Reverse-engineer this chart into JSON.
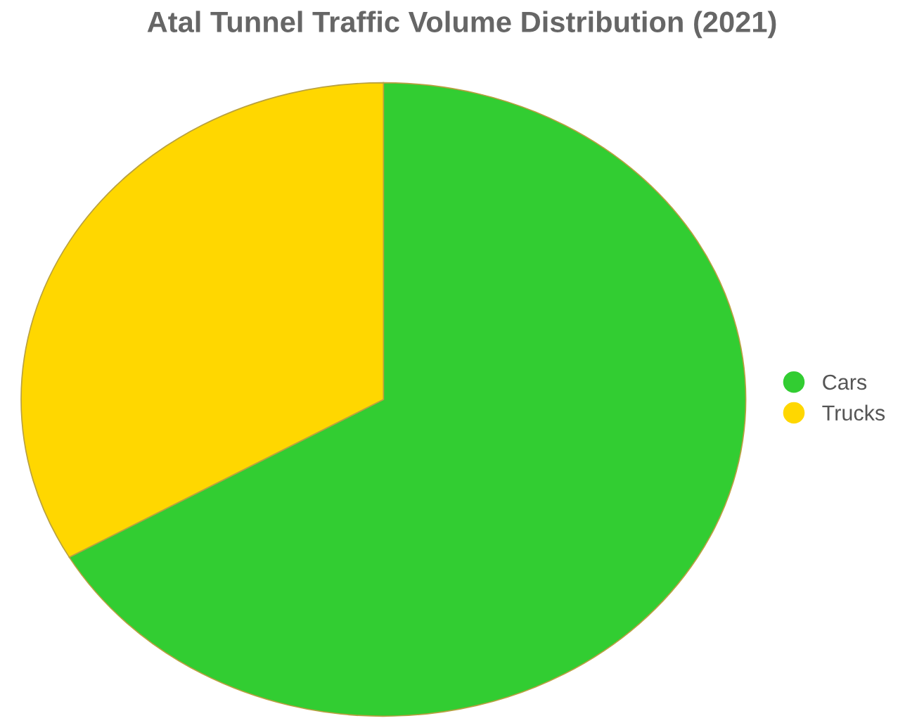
{
  "chart_data": {
    "type": "pie",
    "title": "Atal Tunnel Traffic Volume Distribution (2021)",
    "categories": [
      "Cars",
      "Trucks"
    ],
    "values": [
      66.7,
      33.3
    ],
    "colors": [
      "#32cd32",
      "#ffd700"
    ],
    "legend": "right"
  }
}
